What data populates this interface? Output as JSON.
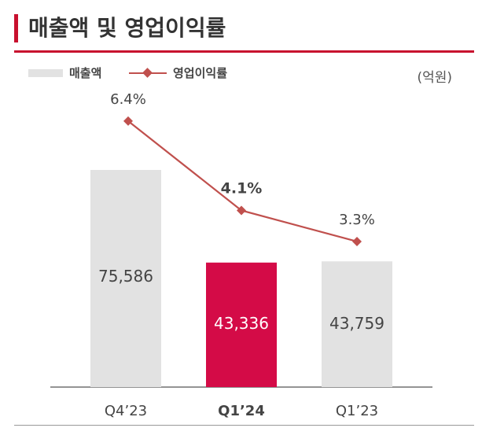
{
  "title": "매출액 및 영업이익률",
  "unit": "(억원)",
  "colors": {
    "accent": "#c8102e",
    "highlight_bar": "#d40b47",
    "bar": "#e2e2e2",
    "line": "#c0504d",
    "rule": "#c8102e"
  },
  "legend": {
    "bar_label": "매출액",
    "line_label": "영업이익률"
  },
  "chart_data": {
    "type": "bar",
    "categories": [
      "Q4’23",
      "Q1’24",
      "Q1’23"
    ],
    "highlight_index": 1,
    "series": [
      {
        "name": "매출액",
        "type": "bar",
        "values": [
          75586,
          43336,
          43759
        ],
        "labels": [
          "75,586",
          "43,336",
          "43,759"
        ]
      },
      {
        "name": "영업이익률",
        "type": "line",
        "values": [
          6.4,
          4.1,
          3.3
        ],
        "labels": [
          "6.4%",
          "4.1%",
          "3.3%"
        ]
      }
    ],
    "legend_position": "top-left"
  }
}
